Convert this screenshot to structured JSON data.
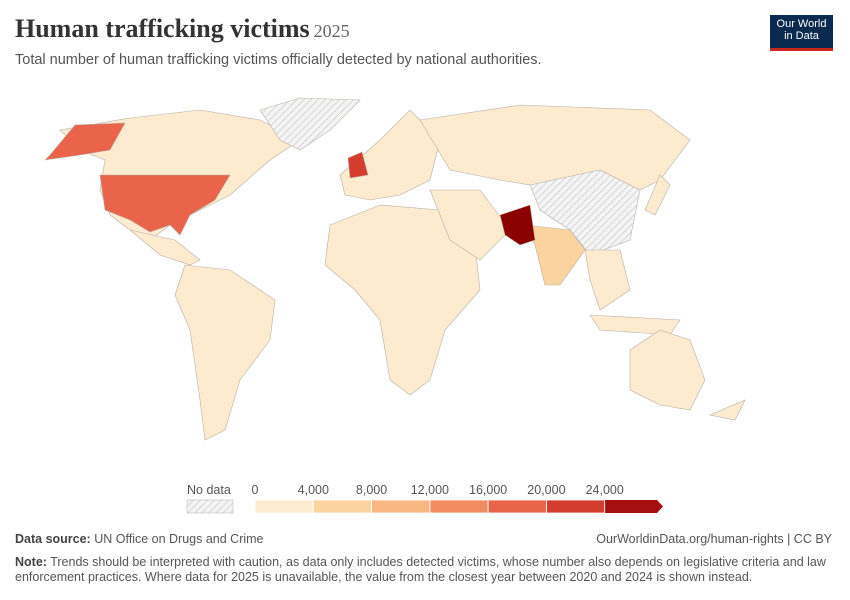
{
  "header": {
    "title": "Human trafficking victims",
    "year": "2025",
    "subtitle": "Total number of human trafficking victims officially detected by national authorities.",
    "logo": [
      "Our World",
      "in Data"
    ]
  },
  "legend": {
    "no_data_label": "No data",
    "lim": [
      0,
      28000
    ],
    "ticks": [
      0,
      {
        "value": 4000,
        "label": "4,000"
      },
      {
        "value": 8000,
        "label": "8,000"
      },
      {
        "value": 12000,
        "label": "12,000"
      },
      {
        "value": 16000,
        "label": "16,000"
      },
      {
        "value": 20000,
        "label": "20,000"
      },
      {
        "value": 24000,
        "label": "24,000"
      }
    ],
    "colors": [
      "#fdebd0",
      "#fbd39e",
      "#f9b883",
      "#f48c62",
      "#e9644a",
      "#d43d2e",
      "#a50f0f"
    ]
  },
  "footer": {
    "source_label": "Data source:",
    "source": "UN Office on Drugs and Crime",
    "url": "OurWorldinData.org/human-rights | CC BY",
    "note_label": "Note:",
    "note": "Trends should be interpreted with caution, as data only includes detected victims, whose number also depends on legislative criteria and law enforcement practices. Where data for 2025 is unavailable, the value from the closest year between 2020 and 2024 is shown instead."
  }
}
